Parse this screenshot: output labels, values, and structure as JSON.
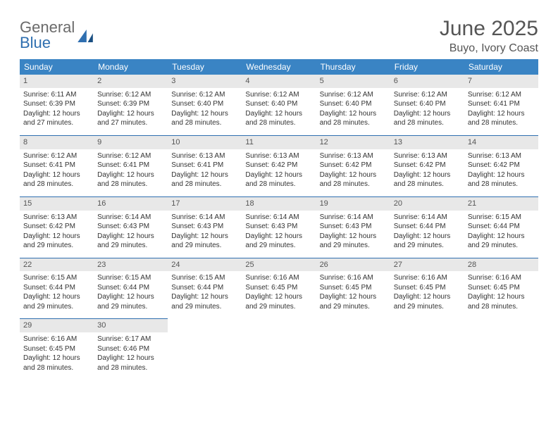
{
  "logo": {
    "word1": "General",
    "word2": "Blue"
  },
  "title": "June 2025",
  "location": "Buyo, Ivory Coast",
  "colors": {
    "header_bg": "#3a84c4",
    "header_text": "#ffffff",
    "border": "#2f6fb0",
    "daynum_bg": "#e8e8e8",
    "text": "#333333",
    "title_text": "#555555"
  },
  "weekdays": [
    "Sunday",
    "Monday",
    "Tuesday",
    "Wednesday",
    "Thursday",
    "Friday",
    "Saturday"
  ],
  "weeks": [
    [
      {
        "n": "1",
        "sr": "Sunrise: 6:11 AM",
        "ss": "Sunset: 6:39 PM",
        "d1": "Daylight: 12 hours",
        "d2": "and 27 minutes."
      },
      {
        "n": "2",
        "sr": "Sunrise: 6:12 AM",
        "ss": "Sunset: 6:39 PM",
        "d1": "Daylight: 12 hours",
        "d2": "and 27 minutes."
      },
      {
        "n": "3",
        "sr": "Sunrise: 6:12 AM",
        "ss": "Sunset: 6:40 PM",
        "d1": "Daylight: 12 hours",
        "d2": "and 28 minutes."
      },
      {
        "n": "4",
        "sr": "Sunrise: 6:12 AM",
        "ss": "Sunset: 6:40 PM",
        "d1": "Daylight: 12 hours",
        "d2": "and 28 minutes."
      },
      {
        "n": "5",
        "sr": "Sunrise: 6:12 AM",
        "ss": "Sunset: 6:40 PM",
        "d1": "Daylight: 12 hours",
        "d2": "and 28 minutes."
      },
      {
        "n": "6",
        "sr": "Sunrise: 6:12 AM",
        "ss": "Sunset: 6:40 PM",
        "d1": "Daylight: 12 hours",
        "d2": "and 28 minutes."
      },
      {
        "n": "7",
        "sr": "Sunrise: 6:12 AM",
        "ss": "Sunset: 6:41 PM",
        "d1": "Daylight: 12 hours",
        "d2": "and 28 minutes."
      }
    ],
    [
      {
        "n": "8",
        "sr": "Sunrise: 6:12 AM",
        "ss": "Sunset: 6:41 PM",
        "d1": "Daylight: 12 hours",
        "d2": "and 28 minutes."
      },
      {
        "n": "9",
        "sr": "Sunrise: 6:12 AM",
        "ss": "Sunset: 6:41 PM",
        "d1": "Daylight: 12 hours",
        "d2": "and 28 minutes."
      },
      {
        "n": "10",
        "sr": "Sunrise: 6:13 AM",
        "ss": "Sunset: 6:41 PM",
        "d1": "Daylight: 12 hours",
        "d2": "and 28 minutes."
      },
      {
        "n": "11",
        "sr": "Sunrise: 6:13 AM",
        "ss": "Sunset: 6:42 PM",
        "d1": "Daylight: 12 hours",
        "d2": "and 28 minutes."
      },
      {
        "n": "12",
        "sr": "Sunrise: 6:13 AM",
        "ss": "Sunset: 6:42 PM",
        "d1": "Daylight: 12 hours",
        "d2": "and 28 minutes."
      },
      {
        "n": "13",
        "sr": "Sunrise: 6:13 AM",
        "ss": "Sunset: 6:42 PM",
        "d1": "Daylight: 12 hours",
        "d2": "and 28 minutes."
      },
      {
        "n": "14",
        "sr": "Sunrise: 6:13 AM",
        "ss": "Sunset: 6:42 PM",
        "d1": "Daylight: 12 hours",
        "d2": "and 28 minutes."
      }
    ],
    [
      {
        "n": "15",
        "sr": "Sunrise: 6:13 AM",
        "ss": "Sunset: 6:42 PM",
        "d1": "Daylight: 12 hours",
        "d2": "and 29 minutes."
      },
      {
        "n": "16",
        "sr": "Sunrise: 6:14 AM",
        "ss": "Sunset: 6:43 PM",
        "d1": "Daylight: 12 hours",
        "d2": "and 29 minutes."
      },
      {
        "n": "17",
        "sr": "Sunrise: 6:14 AM",
        "ss": "Sunset: 6:43 PM",
        "d1": "Daylight: 12 hours",
        "d2": "and 29 minutes."
      },
      {
        "n": "18",
        "sr": "Sunrise: 6:14 AM",
        "ss": "Sunset: 6:43 PM",
        "d1": "Daylight: 12 hours",
        "d2": "and 29 minutes."
      },
      {
        "n": "19",
        "sr": "Sunrise: 6:14 AM",
        "ss": "Sunset: 6:43 PM",
        "d1": "Daylight: 12 hours",
        "d2": "and 29 minutes."
      },
      {
        "n": "20",
        "sr": "Sunrise: 6:14 AM",
        "ss": "Sunset: 6:44 PM",
        "d1": "Daylight: 12 hours",
        "d2": "and 29 minutes."
      },
      {
        "n": "21",
        "sr": "Sunrise: 6:15 AM",
        "ss": "Sunset: 6:44 PM",
        "d1": "Daylight: 12 hours",
        "d2": "and 29 minutes."
      }
    ],
    [
      {
        "n": "22",
        "sr": "Sunrise: 6:15 AM",
        "ss": "Sunset: 6:44 PM",
        "d1": "Daylight: 12 hours",
        "d2": "and 29 minutes."
      },
      {
        "n": "23",
        "sr": "Sunrise: 6:15 AM",
        "ss": "Sunset: 6:44 PM",
        "d1": "Daylight: 12 hours",
        "d2": "and 29 minutes."
      },
      {
        "n": "24",
        "sr": "Sunrise: 6:15 AM",
        "ss": "Sunset: 6:44 PM",
        "d1": "Daylight: 12 hours",
        "d2": "and 29 minutes."
      },
      {
        "n": "25",
        "sr": "Sunrise: 6:16 AM",
        "ss": "Sunset: 6:45 PM",
        "d1": "Daylight: 12 hours",
        "d2": "and 29 minutes."
      },
      {
        "n": "26",
        "sr": "Sunrise: 6:16 AM",
        "ss": "Sunset: 6:45 PM",
        "d1": "Daylight: 12 hours",
        "d2": "and 29 minutes."
      },
      {
        "n": "27",
        "sr": "Sunrise: 6:16 AM",
        "ss": "Sunset: 6:45 PM",
        "d1": "Daylight: 12 hours",
        "d2": "and 29 minutes."
      },
      {
        "n": "28",
        "sr": "Sunrise: 6:16 AM",
        "ss": "Sunset: 6:45 PM",
        "d1": "Daylight: 12 hours",
        "d2": "and 28 minutes."
      }
    ],
    [
      {
        "n": "29",
        "sr": "Sunrise: 6:16 AM",
        "ss": "Sunset: 6:45 PM",
        "d1": "Daylight: 12 hours",
        "d2": "and 28 minutes."
      },
      {
        "n": "30",
        "sr": "Sunrise: 6:17 AM",
        "ss": "Sunset: 6:46 PM",
        "d1": "Daylight: 12 hours",
        "d2": "and 28 minutes."
      },
      null,
      null,
      null,
      null,
      null
    ]
  ]
}
